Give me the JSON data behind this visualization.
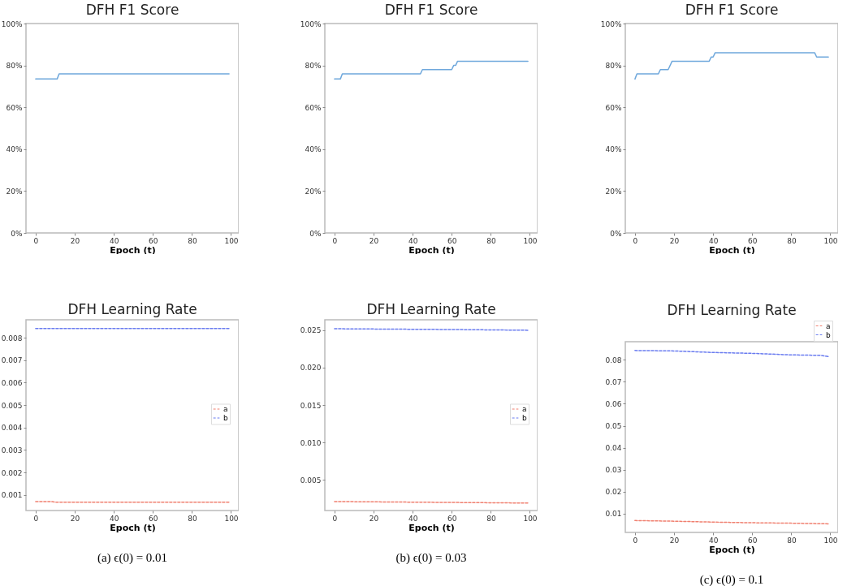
{
  "chart_data": [
    {
      "type": "line",
      "title": "DFH F1 Score",
      "xlabel": "Epoch (t)",
      "xlim": [
        -4.95,
        103.95
      ],
      "xticks": [
        0,
        20,
        40,
        60,
        80,
        100
      ],
      "ylim": [
        0,
        100
      ],
      "yticks": [
        {
          "value": 0,
          "label": "0%"
        },
        {
          "value": 20,
          "label": "20%"
        },
        {
          "value": 40,
          "label": "40%"
        },
        {
          "value": 60,
          "label": "60%"
        },
        {
          "value": 80,
          "label": "80%"
        },
        {
          "value": 100,
          "label": "100%"
        }
      ],
      "grid": false,
      "legend": false,
      "marker": "none",
      "line_style": "solid",
      "series": [
        {
          "color": "#6fa8dc",
          "x": [
            0,
            11,
            12,
            99
          ],
          "values": [
            73.5,
            73.5,
            76,
            76
          ]
        }
      ]
    },
    {
      "type": "line",
      "title": "DFH F1 Score",
      "xlabel": "Epoch (t)",
      "xlim": [
        -4.95,
        103.95
      ],
      "xticks": [
        0,
        20,
        40,
        60,
        80,
        100
      ],
      "ylim": [
        0,
        100
      ],
      "yticks": [
        {
          "value": 0,
          "label": "0%"
        },
        {
          "value": 20,
          "label": "20%"
        },
        {
          "value": 40,
          "label": "40%"
        },
        {
          "value": 60,
          "label": "60%"
        },
        {
          "value": 80,
          "label": "80%"
        },
        {
          "value": 100,
          "label": "100%"
        }
      ],
      "grid": false,
      "legend": false,
      "marker": "none",
      "line_style": "solid",
      "series": [
        {
          "color": "#6fa8dc",
          "x": [
            0,
            3,
            4,
            44,
            45,
            60,
            61,
            62,
            63,
            99
          ],
          "values": [
            73.5,
            73.5,
            76,
            76,
            78,
            78,
            80,
            80,
            82,
            82
          ]
        }
      ]
    },
    {
      "type": "line",
      "title": "DFH F1 Score",
      "xlabel": "Epoch (t)",
      "xlim": [
        -4.95,
        103.95
      ],
      "xticks": [
        0,
        20,
        40,
        60,
        80,
        100
      ],
      "ylim": [
        0,
        100
      ],
      "yticks": [
        {
          "value": 0,
          "label": "0%"
        },
        {
          "value": 20,
          "label": "20%"
        },
        {
          "value": 40,
          "label": "40%"
        },
        {
          "value": 60,
          "label": "60%"
        },
        {
          "value": 80,
          "label": "80%"
        },
        {
          "value": 100,
          "label": "100%"
        }
      ],
      "grid": false,
      "legend": false,
      "marker": "none",
      "line_style": "solid",
      "series": [
        {
          "color": "#6fa8dc",
          "x": [
            0,
            1,
            12,
            13,
            17,
            19,
            38,
            39,
            40,
            41,
            92,
            93,
            99
          ],
          "values": [
            73.5,
            76,
            76,
            78,
            78,
            82,
            82,
            84,
            84,
            86,
            86,
            84,
            84
          ]
        }
      ]
    },
    {
      "type": "line",
      "title": "DFH Learning Rate",
      "xlabel": "Epoch (t)",
      "xlim": [
        -4.95,
        103.95
      ],
      "xticks": [
        0,
        20,
        40,
        60,
        80,
        100
      ],
      "ylim": [
        0.0003,
        0.0088
      ],
      "yticks": [
        0.001,
        0.002,
        0.003,
        0.004,
        0.005,
        0.006,
        0.007,
        0.008
      ],
      "grid": false,
      "legend": "right",
      "marker": "none",
      "line_style": "dashed",
      "annotations": [
        "(a) ϵ(0) = 0.01"
      ],
      "series": [
        {
          "name": "a",
          "color": "#f08070",
          "x": [
            0,
            8,
            10,
            99
          ],
          "values": [
            0.0007,
            0.0007,
            0.00067,
            0.00067
          ]
        },
        {
          "name": "b",
          "color": "#6a7cf0",
          "x": [
            0,
            99
          ],
          "values": [
            0.00841,
            0.00841
          ]
        }
      ]
    },
    {
      "type": "line",
      "title": "DFH Learning Rate",
      "xlabel": "Epoch (t)",
      "xlim": [
        -4.95,
        103.95
      ],
      "xticks": [
        0,
        20,
        40,
        60,
        80,
        100
      ],
      "ylim": [
        0.0009,
        0.0264
      ],
      "yticks": [
        0.005,
        {
          "value": 0.01,
          "label": "0.010"
        },
        0.015,
        {
          "value": 0.02,
          "label": "0.020"
        },
        0.025
      ],
      "grid": false,
      "legend": "right",
      "marker": "none",
      "line_style": "dashed",
      "annotations": [
        "(b) ϵ(0) = 0.03"
      ],
      "series": [
        {
          "name": "a",
          "color": "#f08070",
          "x": [
            0,
            99
          ],
          "values": [
            0.0021,
            0.0019
          ]
        },
        {
          "name": "b",
          "color": "#6a7cf0",
          "x": [
            0,
            60,
            99
          ],
          "values": [
            0.0252,
            0.0251,
            0.025
          ]
        }
      ]
    },
    {
      "type": "line",
      "title": "DFH Learning Rate",
      "xlabel": "Epoch (t)",
      "xlim": [
        -4.95,
        103.95
      ],
      "xticks": [
        0,
        20,
        40,
        60,
        80,
        100
      ],
      "ylim": [
        0.0015,
        0.0882
      ],
      "yticks": [
        0.01,
        0.02,
        0.03,
        0.04,
        0.05,
        0.06,
        0.07,
        0.08
      ],
      "grid": false,
      "legend": "top right",
      "marker": "none",
      "line_style": "dashed",
      "annotations": [
        "(c) ϵ(0) = 0.1"
      ],
      "series": [
        {
          "name": "a",
          "color": "#f08070",
          "x": [
            0,
            20,
            40,
            60,
            80,
            99
          ],
          "values": [
            0.0069,
            0.0066,
            0.0062,
            0.0059,
            0.0057,
            0.0054
          ]
        },
        {
          "name": "b",
          "color": "#6a7cf0",
          "x": [
            0,
            20,
            40,
            60,
            80,
            95,
            99
          ],
          "values": [
            0.0842,
            0.084,
            0.0833,
            0.0829,
            0.0822,
            0.082,
            0.0814
          ]
        }
      ]
    }
  ]
}
